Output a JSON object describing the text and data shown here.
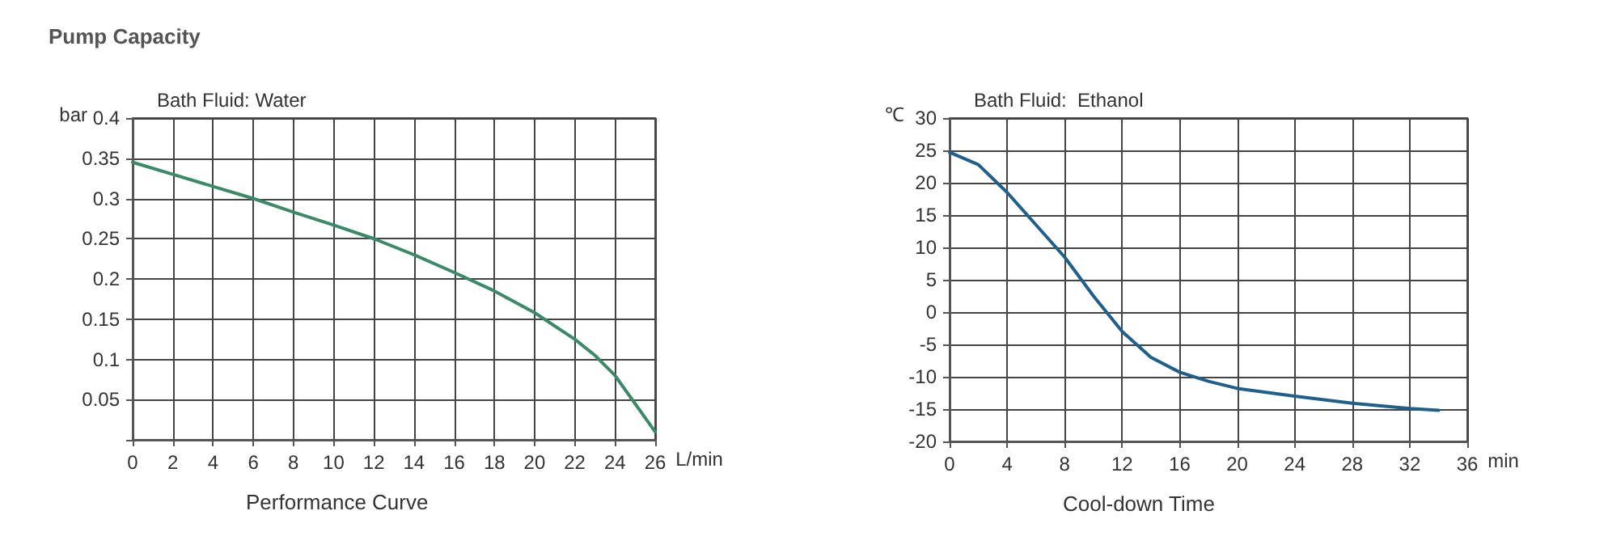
{
  "chart_data": [
    {
      "type": "line",
      "title": "Pump Capacity",
      "subtitle": "Bath Fluid: Water",
      "xlabel": "L/min",
      "ylabel": "bar",
      "annotations": [
        "Performance Curve"
      ],
      "x": [
        0,
        2,
        4,
        6,
        8,
        10,
        12,
        14,
        16,
        18,
        20,
        22,
        23,
        24,
        25,
        26
      ],
      "series": [
        {
          "color": "#3a8a6a",
          "values": [
            0.345,
            0.33,
            0.315,
            0.3,
            0.283,
            0.267,
            0.25,
            0.23,
            0.208,
            0.185,
            0.158,
            0.125,
            0.105,
            0.08,
            0.045,
            0.01
          ]
        }
      ],
      "xlim": [
        0,
        26
      ],
      "xticks": [
        0,
        2,
        4,
        6,
        8,
        10,
        12,
        14,
        16,
        18,
        20,
        22,
        24,
        26
      ],
      "ylim": [
        0,
        0.4
      ],
      "yticks": [
        {
          "value": 0,
          "label": null
        },
        0.05,
        0.1,
        0.15,
        0.2,
        0.25,
        0.3,
        0.35,
        0.4
      ],
      "grid": true,
      "marker": "none",
      "line_style": "solid"
    },
    {
      "type": "line",
      "subtitle": "Bath Fluid:  Ethanol",
      "xlabel": "min",
      "ylabel": "℃",
      "annotations": [
        "Cool-down Time"
      ],
      "x": [
        0,
        2,
        4,
        6,
        8,
        10,
        12,
        14,
        16,
        18,
        20,
        24,
        28,
        32,
        34
      ],
      "series": [
        {
          "color": "#1f5f8b",
          "values": [
            24.7,
            22.8,
            18.5,
            13.5,
            8.5,
            2.5,
            -3,
            -7,
            -9.3,
            -10.7,
            -11.8,
            -13,
            -14.1,
            -14.9,
            -15.2
          ]
        }
      ],
      "xlim": [
        0,
        36
      ],
      "xticks": [
        0,
        4,
        8,
        12,
        16,
        20,
        24,
        28,
        32,
        36
      ],
      "ylim": [
        -20,
        30
      ],
      "yticks": [
        -20,
        -15,
        -10,
        -5,
        0,
        5,
        10,
        15,
        20,
        25,
        30
      ],
      "grid": true,
      "marker": "none",
      "line_style": "solid"
    }
  ]
}
